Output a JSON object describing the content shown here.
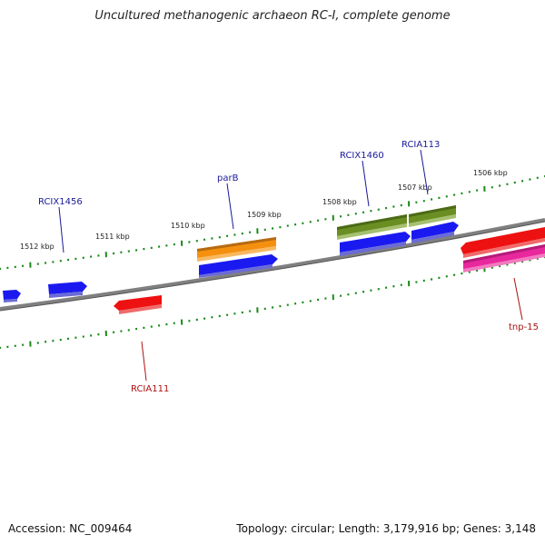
{
  "title": "Uncultured methanogenic archaeon RC-I, complete genome",
  "footer": {
    "accession": "Accession: NC_009464",
    "summary": "Topology: circular; Length: 3,179,916 bp; Genes: 3,148"
  },
  "ticks": [
    "1512 kbp",
    "1511 kbp",
    "1510 kbp",
    "1509 kbp",
    "1508 kbp",
    "1507 kbp",
    "1506 kbp"
  ],
  "colors": {
    "backbone": "#808080",
    "tick": "#1a8a1a",
    "blue": "#1a1af0",
    "red": "#ee1111",
    "orange": "#f5900f",
    "olive": "#6b8e23",
    "magenta": "#e8289c",
    "label_forward": "#1a1a99",
    "label_reverse": "#aa1111"
  },
  "gene_labels": {
    "rcix1456": "RCIX1456",
    "parb": "parB",
    "rcix1460": "RCIX1460",
    "rcia113": "RCIA113",
    "rcia111": "RCIA111",
    "tnp15": "tnp-15"
  }
}
